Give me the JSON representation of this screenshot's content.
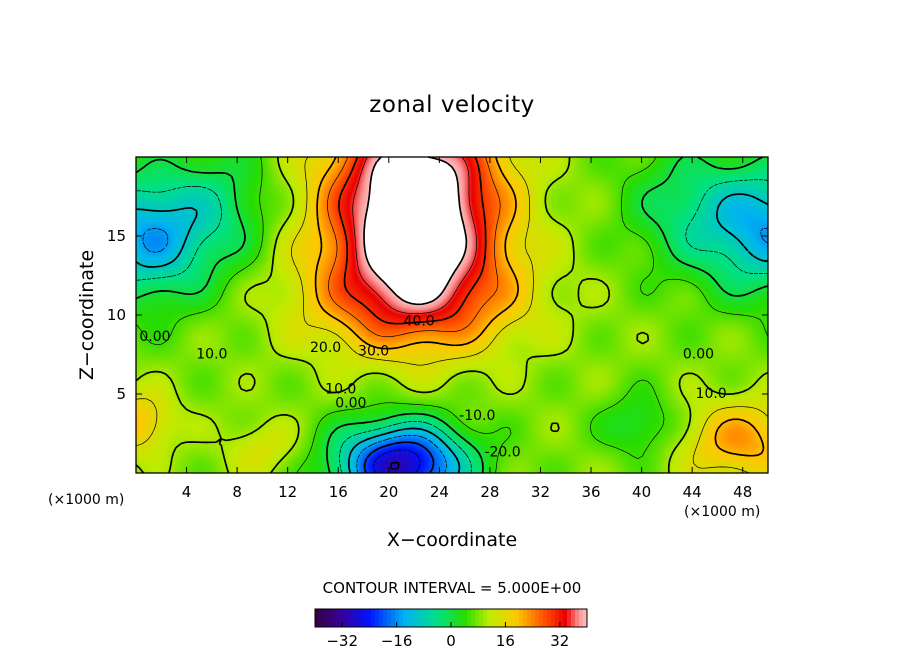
{
  "chart_data": {
    "type": "heatmap",
    "title": "zonal velocity",
    "xlabel": "X−coordinate",
    "ylabel": "Z−coordinate",
    "x_unit_label": "(×1000 m)",
    "z_unit_label": "(×1000 m)",
    "xlim": [
      0,
      50
    ],
    "ylim": [
      0,
      20
    ],
    "x_ticks": [
      4,
      8,
      12,
      16,
      20,
      24,
      28,
      32,
      36,
      40,
      44,
      48
    ],
    "y_ticks": [
      5,
      10,
      15
    ],
    "contour_interval_text": "CONTOUR INTERVAL = 5.000E+00",
    "contour_interval": 5,
    "color_range": [
      -40,
      40
    ],
    "colorbar_ticks": [
      -32,
      -16,
      0,
      16,
      32
    ],
    "contour_labels": [
      {
        "text": "40.0",
        "x": 22.4,
        "z": 9.6,
        "value": 40
      },
      {
        "text": "30.0",
        "x": 18.8,
        "z": 7.7,
        "value": 30
      },
      {
        "text": "20.0",
        "x": 15.0,
        "z": 7.9,
        "value": 20
      },
      {
        "text": "10.0",
        "x": 16.2,
        "z": 5.3,
        "value": 10
      },
      {
        "text": "0.00",
        "x": 17.0,
        "z": 4.4,
        "value": 0
      },
      {
        "text": "-10.0",
        "x": 27.0,
        "z": 3.6,
        "value": -10
      },
      {
        "text": "-20.0",
        "x": 29.0,
        "z": 1.3,
        "value": -20
      },
      {
        "text": "0.00",
        "x": 1.5,
        "z": 8.6,
        "value": 0
      },
      {
        "text": "10.0",
        "x": 6.0,
        "z": 7.5,
        "value": 10
      },
      {
        "text": "0.00",
        "x": 44.5,
        "z": 7.5,
        "value": 0
      },
      {
        "text": "10.0",
        "x": 45.5,
        "z": 5.0,
        "value": 10
      }
    ],
    "grid": false,
    "legend": "colorbar-bottom"
  }
}
